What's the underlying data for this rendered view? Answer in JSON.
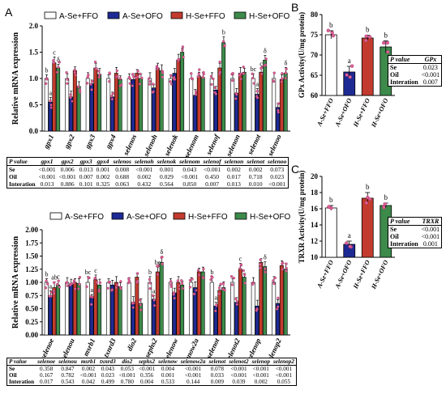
{
  "colors": {
    "A-Se+FFO": "#ffffff",
    "A-Se+OFO": "#1e2a94",
    "H-Se+FFO": "#c23b2e",
    "H-Se+OFO": "#3d8a4a",
    "point": "#e0609a",
    "axis": "#000000"
  },
  "chart_data": [
    {
      "id": "A1",
      "panel_label": "A",
      "type": "bar",
      "ylabel": "Relative mRNA expression",
      "ylim": [
        0,
        2.0
      ],
      "yticks": [
        "0.0",
        "0.5",
        "1.0",
        "1.5",
        "2.0"
      ],
      "legend": [
        "A-Se+FFO",
        "A-Se+OFO",
        "H-Se+FFO",
        "H-Se+OFO"
      ],
      "legend_position": "top",
      "categories": [
        "gpx1",
        "gpx2",
        "gpx3",
        "gpx4",
        "selenos",
        "selenoh",
        "selenok",
        "selenom",
        "selenof",
        "selenon",
        "selenot",
        "selenoo"
      ],
      "series": [
        {
          "name": "A-Se+FFO",
          "values": [
            1.0,
            1.0,
            1.0,
            1.0,
            1.0,
            1.0,
            1.0,
            1.0,
            1.0,
            1.0,
            1.0,
            1.0
          ]
        },
        {
          "name": "A-Se+OFO",
          "values": [
            0.55,
            0.65,
            0.9,
            0.65,
            0.98,
            0.82,
            1.1,
            0.68,
            0.78,
            0.72,
            0.7,
            0.45
          ]
        },
        {
          "name": "H-Se+FFO",
          "values": [
            1.3,
            1.15,
            1.2,
            1.1,
            1.1,
            1.2,
            1.35,
            1.05,
            1.2,
            1.1,
            1.12,
            0.98
          ]
        },
        {
          "name": "H-Se+OFO",
          "values": [
            1.2,
            0.85,
            1.08,
            0.98,
            1.0,
            1.15,
            1.5,
            1.02,
            1.68,
            1.12,
            1.35,
            1.1
          ]
        }
      ],
      "sig_labels": [
        [
          "b",
          "a",
          "c",
          "δ"
        ],
        [
          "",
          "",
          "",
          ""
        ],
        [
          "",
          "",
          "",
          ""
        ],
        [
          "",
          "",
          "",
          ""
        ],
        [
          "",
          "",
          "",
          ""
        ],
        [
          "",
          "",
          "",
          ""
        ],
        [
          "",
          "",
          "",
          ""
        ],
        [
          "",
          "",
          "",
          ""
        ],
        [
          "",
          "",
          "",
          "b"
        ],
        [
          "",
          "",
          "",
          ""
        ],
        [
          "bc",
          "a",
          "c",
          "δ"
        ],
        [
          "",
          "",
          "",
          "δ"
        ]
      ]
    },
    {
      "id": "A2",
      "panel_label": "",
      "type": "bar",
      "ylabel": "Relative mRNA expression",
      "ylim": [
        0,
        2.0
      ],
      "yticks": [
        "0.00",
        "0.25",
        "0.50",
        "0.75",
        "1.00",
        "1.25",
        "1.50",
        "1.75",
        "2.00"
      ],
      "legend": [
        "A-Se+FFO",
        "A-Se+OFO",
        "H-Se+FFO",
        "H-Se+OFO"
      ],
      "legend_position": "top",
      "categories": [
        "selenoe",
        "selenou",
        "msrb1",
        "txnrd3",
        "dio2",
        "sephs2",
        "selenow",
        "selenow2a",
        "selenot",
        "selenot2",
        "selenop",
        "selenop2"
      ],
      "series": [
        {
          "name": "A-Se+FFO",
          "values": [
            1.0,
            1.0,
            1.0,
            1.0,
            1.0,
            1.0,
            1.0,
            1.0,
            1.0,
            1.0,
            1.0,
            1.0
          ]
        },
        {
          "name": "A-Se+OFO",
          "values": [
            0.75,
            0.95,
            0.7,
            0.95,
            0.62,
            0.68,
            0.8,
            0.9,
            0.55,
            0.62,
            0.55,
            0.6
          ]
        },
        {
          "name": "H-Se+FFO",
          "values": [
            0.9,
            1.0,
            1.05,
            1.0,
            1.1,
            1.2,
            1.0,
            1.2,
            0.85,
            1.25,
            1.38,
            1.32
          ]
        },
        {
          "name": "H-Se+OFO",
          "values": [
            0.95,
            0.98,
            0.95,
            0.92,
            0.6,
            1.38,
            0.95,
            1.2,
            0.9,
            1.1,
            1.3,
            1.25
          ]
        }
      ],
      "sig_labels": [
        [
          "b",
          "a",
          "ab",
          "c"
        ],
        [
          "",
          "",
          "",
          ""
        ],
        [
          "bc",
          "a",
          "c",
          ""
        ],
        [
          "",
          "",
          "",
          ""
        ],
        [
          "",
          "",
          "",
          ""
        ],
        [
          "b",
          "a",
          "bc",
          "δ"
        ],
        [
          "",
          "",
          "",
          ""
        ],
        [
          "",
          "",
          "",
          ""
        ],
        [
          "b",
          "a",
          "",
          ""
        ],
        [
          "",
          "",
          "c",
          ""
        ],
        [
          "",
          "",
          "",
          "δ"
        ],
        [
          "",
          "",
          "",
          ""
        ]
      ]
    },
    {
      "id": "B",
      "panel_label": "B",
      "type": "bar",
      "ylabel": "GPx Activity(U/mg protein)",
      "ylim": [
        60,
        80
      ],
      "yticks": [
        "60",
        "65",
        "70",
        "75",
        "80"
      ],
      "categories": [
        "A-Se+FFO",
        "A-Se+OFO",
        "H-Se+FFO",
        "H-Se+OFO"
      ],
      "values": [
        75.0,
        65.8,
        74.2,
        72.0
      ],
      "errors": [
        1.0,
        1.4,
        0.7,
        1.5
      ],
      "sig_labels": [
        "b",
        "a",
        "b",
        "b"
      ]
    },
    {
      "id": "C",
      "panel_label": "C",
      "type": "bar",
      "ylabel": "TRXR Activity(U/mg protein)",
      "ylim": [
        10,
        20
      ],
      "yticks": [
        "10",
        "12",
        "14",
        "16",
        "18",
        "20"
      ],
      "categories": [
        "A-Se+FFO",
        "A-Se+OFO",
        "H-Se+FFO",
        "H-Se+OFO"
      ],
      "values": [
        16.1,
        11.6,
        17.3,
        16.4
      ],
      "errors": [
        0.3,
        0.4,
        0.7,
        0.3
      ],
      "sig_labels": [
        "b",
        "a",
        "b",
        "b"
      ]
    }
  ],
  "tables": {
    "t1": {
      "header": [
        "P value",
        "gpx1",
        "gpx2",
        "gpx3",
        "gpx4",
        "selenos",
        "selenoh",
        "selenok",
        "selenom",
        "selenof",
        "selenon",
        "selenot",
        "selenoo"
      ],
      "rows": [
        [
          "Se",
          "<0.001",
          "0.006",
          "0.013",
          "0.001",
          "0.008",
          "<0.001",
          "0.001",
          "0.043",
          "<0.001",
          "0.002",
          "0.002",
          "0.073"
        ],
        [
          "Oil",
          "<0.001",
          "<0.001",
          "0.007",
          "0.002",
          "0.688",
          "0.002",
          "0.029",
          "<0.001",
          "0.450",
          "0.017",
          "0.718",
          "0.023"
        ],
        [
          "Interation",
          "0.013",
          "0.886",
          "0.101",
          "0.325",
          "0.063",
          "0.432",
          "0.564",
          "0.850",
          "0.007",
          "0.013",
          "0.010",
          "<0.001"
        ]
      ]
    },
    "t2": {
      "header": [
        "P value",
        "selenoe",
        "selenou",
        "msrb1",
        "txnrd3",
        "dio2",
        "sephs2",
        "selenow",
        "selenow2a",
        "selenot",
        "selenot2",
        "selenop",
        "selenop2"
      ],
      "rows": [
        [
          "Se",
          "0.358",
          "0.847",
          "0.002",
          "0.043",
          "0.053",
          "<0.001",
          "0.004",
          "<0.001",
          "0.078",
          "<0.001",
          "<0.001",
          "<0.001"
        ],
        [
          "Oil",
          "0.167",
          "0.782",
          "<0.001",
          "0.023",
          "<0.001",
          "0.356",
          "0.001",
          "<0.001",
          "0.033",
          "<0.001",
          "<0.001",
          "<0.001"
        ],
        [
          "Interation",
          "0.017",
          "0.543",
          "0.042",
          "0.499",
          "0.780",
          "0.004",
          "0.533",
          "0.144",
          "0.009",
          "0.039",
          "0.002",
          "0.055"
        ]
      ]
    },
    "tB": {
      "rows": [
        [
          "P value",
          "GPx"
        ],
        [
          "Se",
          "0.023"
        ],
        [
          "Oil",
          "<0.001"
        ],
        [
          "Interation",
          "0.007"
        ]
      ]
    },
    "tC": {
      "rows": [
        [
          "P value",
          "TRXR"
        ],
        [
          "Se",
          "<0.001"
        ],
        [
          "Oil",
          "<0.001"
        ],
        [
          "Interation",
          "0.001"
        ]
      ]
    }
  }
}
